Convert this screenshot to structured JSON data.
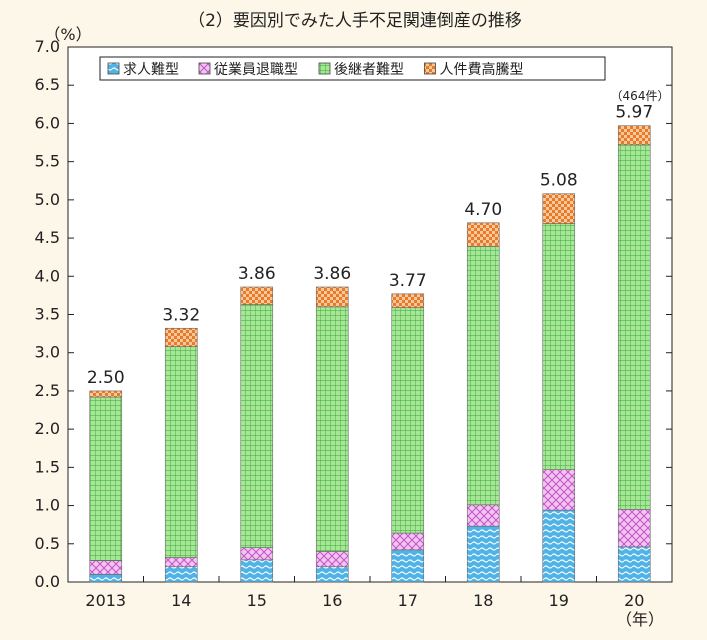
{
  "chart_data": {
    "type": "bar",
    "stacked": true,
    "title": "（2）要因別でみた人手不足関連倒産の推移",
    "y_unit": "（%）",
    "x_unit": "（年）",
    "categories": [
      "2013",
      "14",
      "15",
      "16",
      "17",
      "18",
      "19",
      "20"
    ],
    "ylim": [
      0,
      7.0
    ],
    "yticks": [
      "0.0",
      "0.5",
      "1.0",
      "1.5",
      "2.0",
      "2.5",
      "3.0",
      "3.5",
      "4.0",
      "4.5",
      "5.0",
      "5.5",
      "6.0",
      "6.5",
      "7.0"
    ],
    "series": [
      {
        "name": "求人難型",
        "color": "#4fb3e8",
        "values": [
          0.1,
          0.2,
          0.29,
          0.2,
          0.42,
          0.73,
          0.94,
          0.46
        ]
      },
      {
        "name": "従業員退職型",
        "color": "#f0b8f0",
        "values": [
          0.18,
          0.12,
          0.16,
          0.2,
          0.22,
          0.28,
          0.53,
          0.49
        ]
      },
      {
        "name": "後継者難型",
        "color": "#7fd86a",
        "values": [
          2.14,
          2.76,
          3.18,
          3.2,
          2.95,
          3.38,
          3.22,
          4.77
        ]
      },
      {
        "name": "人件費高騰型",
        "color": "#f5a462",
        "values": [
          0.08,
          0.24,
          0.23,
          0.26,
          0.18,
          0.31,
          0.39,
          0.25
        ]
      }
    ],
    "totals": [
      "2.50",
      "3.32",
      "3.86",
      "3.86",
      "3.77",
      "4.70",
      "5.08",
      "5.97"
    ],
    "annotation": "（464件）",
    "grid": false,
    "legend_position": "top"
  }
}
